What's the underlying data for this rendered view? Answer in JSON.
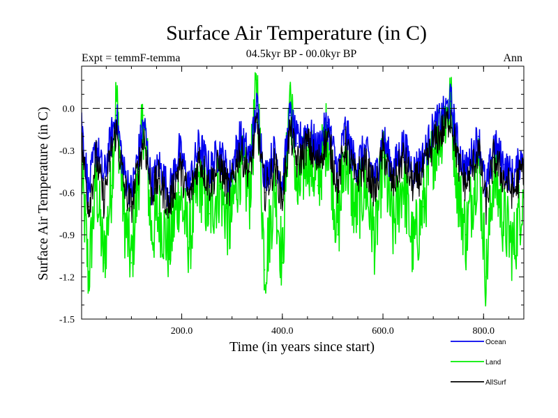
{
  "chart_data": {
    "type": "line",
    "title": "Surface Air Temperature (in C)",
    "subtitle": "04.5kyr BP - 00.0kyr BP",
    "left_label": "Expt = temmF-temma",
    "right_label": "Ann",
    "xlabel": "Time (in years since start)",
    "ylabel": "Surface Air Temperature (in C)",
    "xlim": [
      1,
      880
    ],
    "ylim": [
      -1.5,
      0.3
    ],
    "x_ticks": [
      200,
      400,
      600,
      800
    ],
    "x_tick_labels": [
      "200.0",
      "400.0",
      "600.0",
      "800.0"
    ],
    "y_ticks": [
      0.0,
      -0.3,
      -0.6,
      -0.9,
      -1.2,
      -1.5
    ],
    "y_tick_labels": [
      "0.0",
      "-0.3",
      "-0.6",
      "-0.9",
      "-1.2",
      "-1.5"
    ],
    "zero_line": 0.0,
    "legend_position": "bottom-right",
    "series": [
      {
        "name": "Land",
        "color": "#00ee00",
        "x": [
          1,
          15,
          30,
          45,
          60,
          70,
          85,
          100,
          115,
          125,
          140,
          155,
          175,
          195,
          215,
          235,
          255,
          275,
          295,
          315,
          335,
          350,
          365,
          385,
          400,
          415,
          430,
          450,
          470,
          490,
          510,
          525,
          545,
          565,
          585,
          600,
          620,
          640,
          660,
          680,
          700,
          720,
          735,
          750,
          765,
          790,
          805,
          820,
          840,
          860,
          880
        ],
        "values": [
          -0.45,
          -1.2,
          -0.5,
          -1.1,
          -0.55,
          0.08,
          -0.75,
          -1.1,
          -0.45,
          -0.05,
          -0.9,
          -0.75,
          -1.0,
          -0.6,
          -0.95,
          -0.5,
          -0.75,
          -0.55,
          -0.85,
          -0.4,
          -0.6,
          0.2,
          -1.15,
          -0.55,
          -1.1,
          0.16,
          -0.65,
          -0.3,
          -0.55,
          -0.15,
          -0.9,
          -0.3,
          -0.75,
          -0.55,
          -0.95,
          -0.35,
          -0.85,
          -0.5,
          -1.0,
          -0.7,
          -0.3,
          -0.1,
          0.02,
          -0.6,
          -0.9,
          -0.35,
          -1.2,
          -0.45,
          -0.8,
          -1.0,
          -0.55
        ]
      },
      {
        "name": "Ocean",
        "color": "#0000ee",
        "x": [
          1,
          15,
          30,
          45,
          60,
          70,
          85,
          100,
          115,
          125,
          140,
          155,
          175,
          195,
          215,
          235,
          255,
          275,
          295,
          315,
          335,
          350,
          365,
          385,
          400,
          415,
          430,
          450,
          470,
          490,
          510,
          525,
          545,
          565,
          585,
          600,
          620,
          640,
          660,
          680,
          700,
          720,
          735,
          750,
          765,
          790,
          805,
          820,
          840,
          860,
          880
        ],
        "values": [
          -0.1,
          -0.6,
          -0.25,
          -0.5,
          -0.2,
          -0.05,
          -0.45,
          -0.6,
          -0.3,
          -0.1,
          -0.55,
          -0.4,
          -0.6,
          -0.3,
          -0.55,
          -0.25,
          -0.45,
          -0.3,
          -0.5,
          -0.2,
          -0.35,
          0.02,
          -0.5,
          -0.3,
          -0.55,
          -0.05,
          -0.25,
          -0.15,
          -0.3,
          -0.1,
          -0.45,
          -0.15,
          -0.4,
          -0.3,
          -0.5,
          -0.2,
          -0.45,
          -0.25,
          -0.45,
          -0.35,
          -0.15,
          -0.05,
          0.05,
          -0.3,
          -0.45,
          -0.2,
          -0.6,
          -0.25,
          -0.4,
          -0.5,
          -0.3
        ]
      },
      {
        "name": "AllSurf",
        "color": "#000000",
        "x": [
          1,
          15,
          30,
          45,
          60,
          70,
          85,
          100,
          115,
          125,
          140,
          155,
          175,
          195,
          215,
          235,
          255,
          275,
          295,
          315,
          335,
          350,
          365,
          385,
          400,
          415,
          430,
          450,
          470,
          490,
          510,
          525,
          545,
          565,
          585,
          600,
          620,
          640,
          660,
          680,
          700,
          720,
          735,
          750,
          765,
          790,
          805,
          820,
          840,
          860,
          880
        ],
        "values": [
          -0.25,
          -0.7,
          -0.35,
          -0.65,
          -0.3,
          -0.15,
          -0.55,
          -0.7,
          -0.4,
          -0.2,
          -0.6,
          -0.5,
          -0.7,
          -0.4,
          -0.65,
          -0.35,
          -0.55,
          -0.4,
          -0.6,
          -0.3,
          -0.45,
          -0.1,
          -0.6,
          -0.4,
          -0.65,
          -0.15,
          -0.4,
          -0.25,
          -0.4,
          -0.2,
          -0.55,
          -0.25,
          -0.5,
          -0.4,
          -0.6,
          -0.3,
          -0.55,
          -0.35,
          -0.55,
          -0.45,
          -0.25,
          -0.15,
          -0.05,
          -0.4,
          -0.55,
          -0.3,
          -0.7,
          -0.35,
          -0.5,
          -0.6,
          -0.4
        ]
      }
    ]
  }
}
